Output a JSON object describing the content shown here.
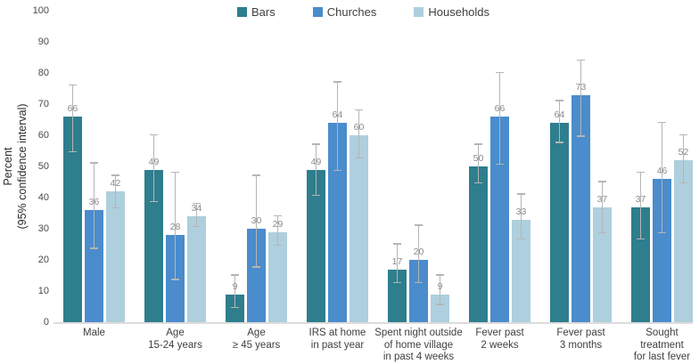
{
  "chart_data": {
    "type": "bar",
    "title": "",
    "ylabel": "Percent (95% confidence interval)",
    "ylabel_lines": [
      "Percent",
      "(95% confidence interval)"
    ],
    "xlabel": "",
    "ylim": [
      0,
      100
    ],
    "yticks": [
      0,
      10,
      20,
      30,
      40,
      50,
      60,
      70,
      80,
      90,
      100
    ],
    "grid": false,
    "legend_position": "top-center",
    "error_bars": "95% confidence interval",
    "colors": {
      "error_bar": "#b5b5b5",
      "value_label": "#8b8b8b",
      "axis_text": "#3f3f3f",
      "baseline": "#dcdcdc"
    },
    "categories": [
      {
        "id": "male",
        "label": "Male",
        "label_lines": [
          "Male"
        ]
      },
      {
        "id": "age-15-24",
        "label": "Age 15-24 years",
        "label_lines": [
          "Age",
          "15-24 years"
        ]
      },
      {
        "id": "age-45-plus",
        "label": "Age ≥ 45 years",
        "label_lines": [
          "Age",
          "≥ 45 years"
        ]
      },
      {
        "id": "irs-at-home",
        "label": "IRS at home in past year",
        "label_lines": [
          "IRS at home",
          "in past year"
        ]
      },
      {
        "id": "spent-night-outside",
        "label": "Spent night outside of home village in past 4 weeks",
        "label_lines": [
          "Spent night outside",
          "of home village",
          "in past 4 weeks"
        ]
      },
      {
        "id": "fever-2-weeks",
        "label": "Fever past 2 weeks",
        "label_lines": [
          "Fever past",
          "2 weeks"
        ]
      },
      {
        "id": "fever-3-months",
        "label": "Fever past 3 months",
        "label_lines": [
          "Fever past",
          "3 months"
        ]
      },
      {
        "id": "sought-treatment",
        "label": "Sought treatment for last fever",
        "label_lines": [
          "Sought",
          "treatment",
          "for last fever"
        ]
      }
    ],
    "series": [
      {
        "name": "Bars",
        "color": "#2e7e8d",
        "values": [
          66,
          49,
          9,
          49,
          17,
          50,
          64,
          37
        ],
        "ci_low": [
          55,
          39,
          5,
          41,
          13,
          45,
          58,
          27
        ],
        "ci_high": [
          76,
          60,
          15,
          57,
          25,
          57,
          71,
          48
        ]
      },
      {
        "name": "Churches",
        "color": "#4a8ccc",
        "values": [
          36,
          28,
          30,
          64,
          20,
          66,
          73,
          46
        ],
        "ci_low": [
          24,
          14,
          18,
          49,
          13,
          51,
          60,
          29
        ],
        "ci_high": [
          51,
          48,
          47,
          77,
          31,
          80,
          84,
          64
        ]
      },
      {
        "name": "Households",
        "color": "#aecfdd",
        "values": [
          42,
          34,
          29,
          60,
          9,
          33,
          37,
          52
        ],
        "ci_low": [
          37,
          31,
          25,
          53,
          6,
          27,
          29,
          45
        ],
        "ci_high": [
          47,
          38,
          34,
          68,
          15,
          41,
          45,
          60
        ]
      }
    ]
  }
}
